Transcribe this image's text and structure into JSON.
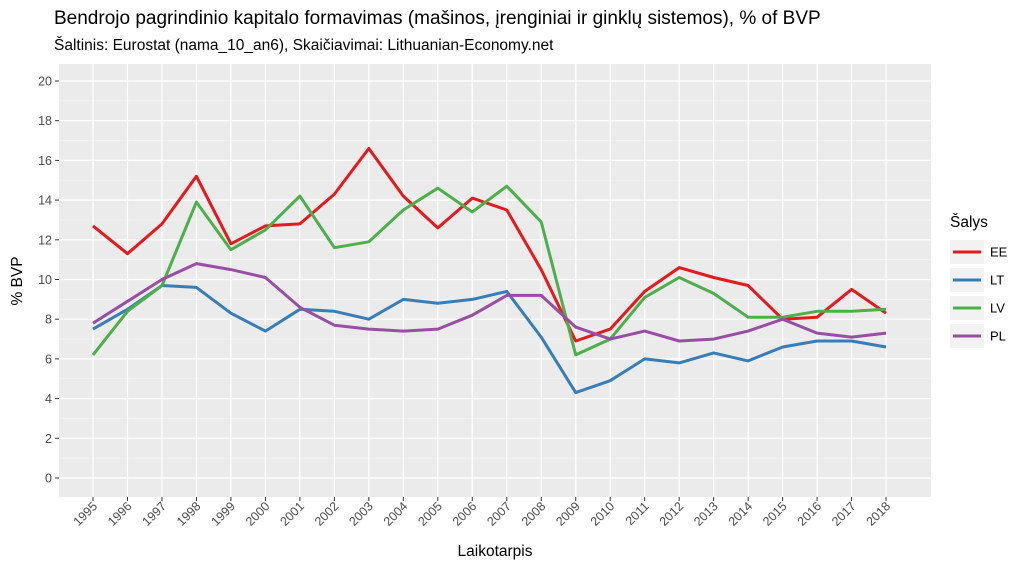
{
  "chart_data": {
    "type": "line",
    "title": "Bendrojo pagrindinio kapitalo formavimas (mašinos, įrenginiai ir ginklų sistemos), % of BVP",
    "subtitle": "Šaltinis: Eurostat (nama_10_an6), Skaičiavimai: Lithuanian-Economy.net",
    "xlabel": "Laikotarpis",
    "ylabel": "% BVP",
    "legend_title": "Šalys",
    "legend_position": "right",
    "grid": true,
    "ylim": [
      0,
      20
    ],
    "yticks": [
      0,
      2,
      4,
      6,
      8,
      10,
      12,
      14,
      16,
      18,
      20
    ],
    "x": [
      "1995",
      "1996",
      "1997",
      "1998",
      "1999",
      "2000",
      "2001",
      "2002",
      "2003",
      "2004",
      "2005",
      "2006",
      "2007",
      "2008",
      "2009",
      "2010",
      "2011",
      "2012",
      "2013",
      "2014",
      "2015",
      "2016",
      "2017",
      "2018"
    ],
    "series": [
      {
        "name": "EE",
        "color": "#e41a1c",
        "values": [
          12.7,
          11.3,
          12.8,
          15.2,
          11.8,
          12.7,
          12.8,
          14.3,
          16.6,
          14.2,
          12.6,
          14.1,
          13.5,
          10.5,
          6.9,
          7.5,
          9.4,
          10.6,
          10.1,
          9.7,
          8.0,
          8.1,
          9.5,
          8.3
        ]
      },
      {
        "name": "LT",
        "color": "#377eb8",
        "values": [
          7.5,
          8.5,
          9.7,
          9.6,
          8.3,
          7.4,
          8.5,
          8.4,
          8.0,
          9.0,
          8.8,
          9.0,
          9.4,
          7.1,
          4.3,
          4.9,
          6.0,
          5.8,
          6.3,
          5.9,
          6.6,
          6.9,
          6.9,
          6.6
        ]
      },
      {
        "name": "LV",
        "color": "#4daf4a",
        "values": [
          6.2,
          8.4,
          9.7,
          13.9,
          11.5,
          12.5,
          14.2,
          11.6,
          11.9,
          13.5,
          14.6,
          13.4,
          14.7,
          12.9,
          6.2,
          7.0,
          9.1,
          10.1,
          9.3,
          8.1,
          8.1,
          8.4,
          8.4,
          8.5
        ]
      },
      {
        "name": "PL",
        "color": "#984ea3",
        "values": [
          7.8,
          8.9,
          10.0,
          10.8,
          10.5,
          10.1,
          8.6,
          7.7,
          7.5,
          7.4,
          7.5,
          8.2,
          9.2,
          9.2,
          7.6,
          7.0,
          7.4,
          6.9,
          7.0,
          7.4,
          8.0,
          7.3,
          7.1,
          7.3
        ]
      }
    ]
  }
}
